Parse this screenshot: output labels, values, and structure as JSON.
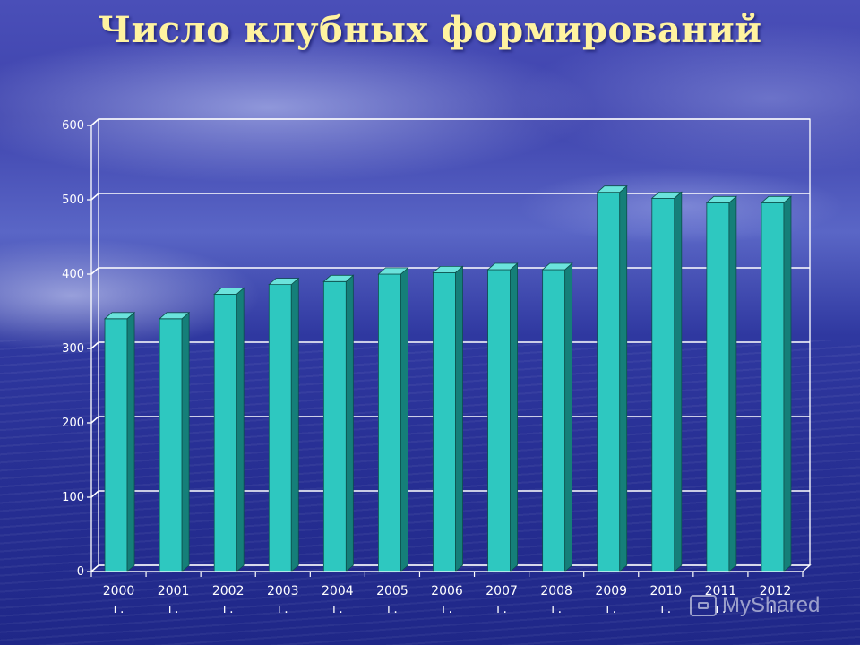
{
  "slide": {
    "title": "Число клубных формирований",
    "watermark": "MyShared"
  },
  "colors": {
    "bar_front": "#2ec8c0",
    "bar_side": "#157f79",
    "bar_top": "#6be3dc",
    "grid": "#ffffff",
    "title": "#fff3a0"
  },
  "chart_data": {
    "type": "bar",
    "title": "",
    "xlabel": "",
    "ylabel": "",
    "categories": [
      [
        "2000",
        "г."
      ],
      [
        "2001",
        "г."
      ],
      [
        "2002",
        "г."
      ],
      [
        "2003",
        "г."
      ],
      [
        "2004",
        "г."
      ],
      [
        "2005",
        "г."
      ],
      [
        "2006",
        "г."
      ],
      [
        "2007",
        "г."
      ],
      [
        "2008",
        "г."
      ],
      [
        "2009",
        "г."
      ],
      [
        "2010",
        "г."
      ],
      [
        "2011",
        "г."
      ],
      [
        "2012",
        "г."
      ]
    ],
    "values": [
      340,
      340,
      373,
      386,
      390,
      400,
      402,
      406,
      406,
      510,
      502,
      496,
      496
    ],
    "ylim": [
      0,
      600
    ],
    "yticks": [
      0,
      100,
      200,
      300,
      400,
      500,
      600
    ],
    "grid": true,
    "legend": "none",
    "style": "3d-column"
  }
}
